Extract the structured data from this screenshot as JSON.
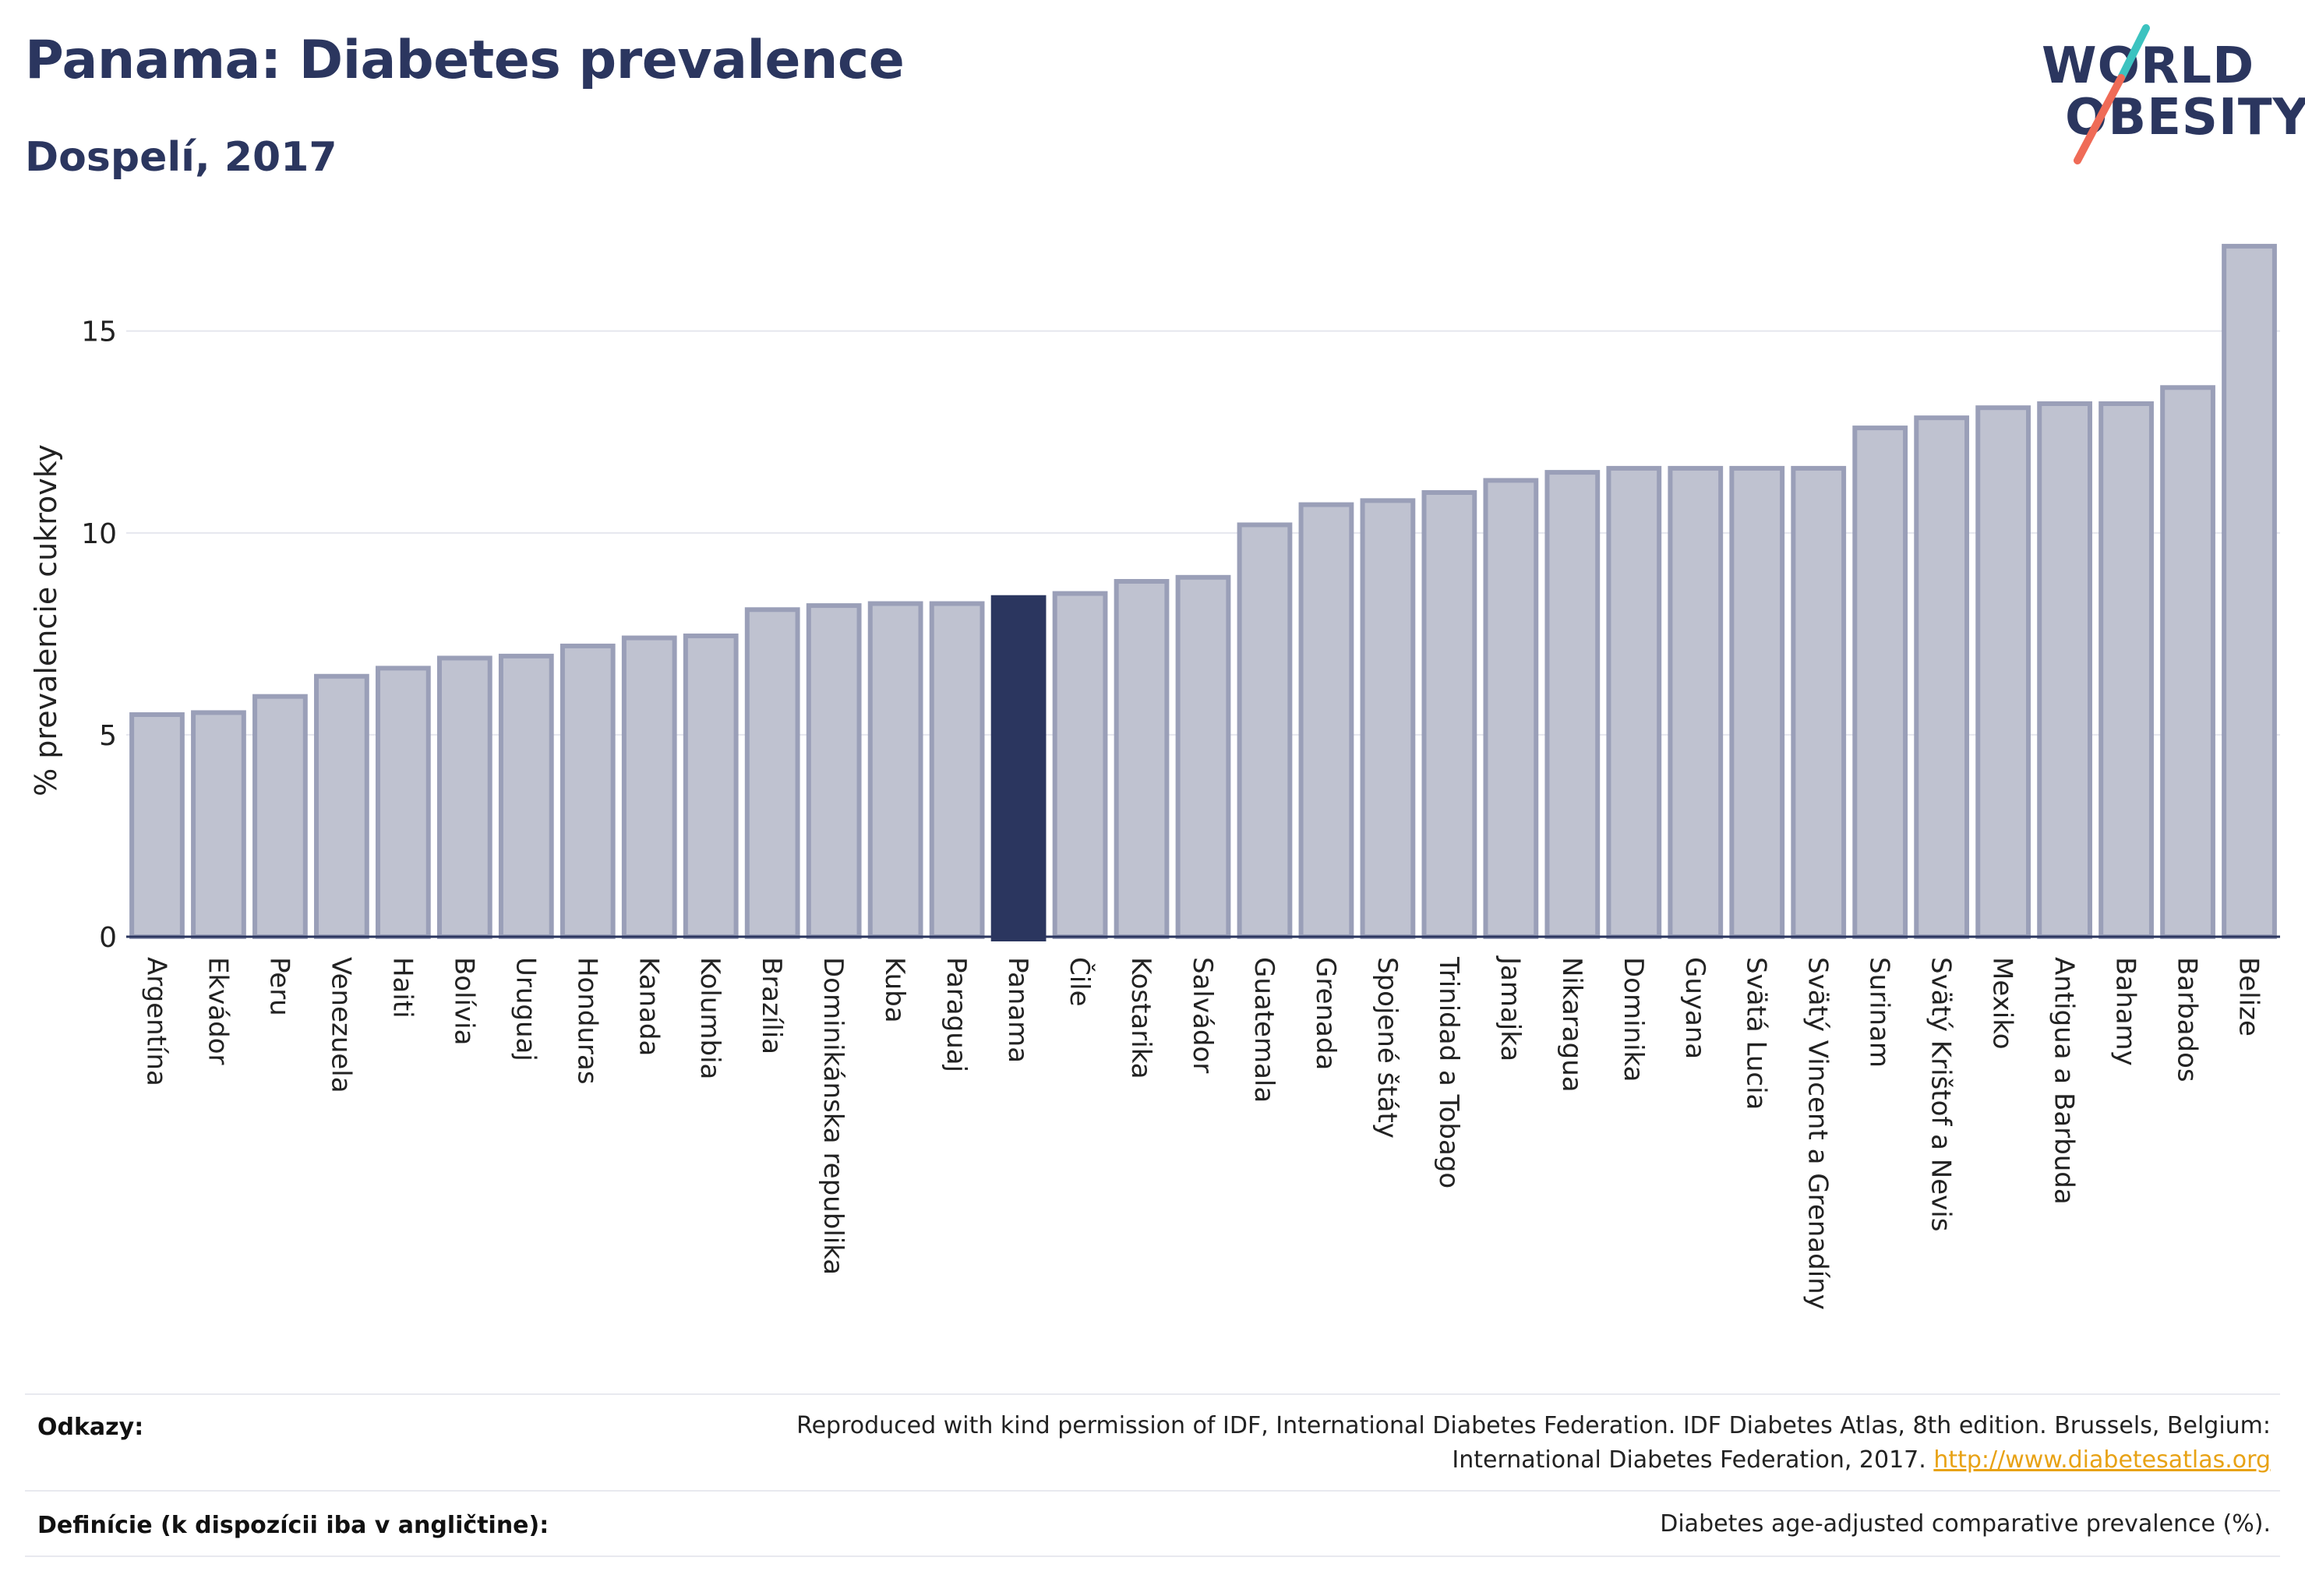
{
  "header": {
    "title": "Panama: Diabetes prevalence",
    "subtitle": "Dospelí, 2017"
  },
  "logo": {
    "line1": "WORLD",
    "line2": "OBESITY",
    "colors": {
      "text": "#2b365f",
      "slash_top": "#3cc3c0",
      "slash_bottom": "#ef6b57"
    }
  },
  "chart_data": {
    "type": "bar",
    "ylabel": "% prevalencie cukrovky",
    "ylim": [
      0,
      17.6
    ],
    "yticks": [
      0,
      5,
      10,
      15
    ],
    "grid": true,
    "highlight": "Panama",
    "colors": {
      "bar_fill": "#bfc2d0",
      "bar_stroke": "#9a9fb8",
      "highlight_fill": "#2b365f",
      "grid": "#e6e7ee",
      "axis": "#2b365f"
    },
    "categories": [
      "Argentína",
      "Ekvádor",
      "Peru",
      "Venezuela",
      "Haiti",
      "Bolívia",
      "Uruguaj",
      "Honduras",
      "Kanada",
      "Kolumbia",
      "Brazília",
      "Dominikánska republika",
      "Kuba",
      "Paraguaj",
      "Panama",
      "Čile",
      "Kostarika",
      "Salvádor",
      "Guatemala",
      "Grenada",
      "Spojené štáty",
      "Trinidad a Tobago",
      "Jamajka",
      "Nikaragua",
      "Dominika",
      "Guyana",
      "Svätá Lucia",
      "Svätý Vincent a Grenadíny",
      "Surinam",
      "Svätý Krištof a Nevis",
      "Mexiko",
      "Antigua a Barbuda",
      "Bahamy",
      "Barbados",
      "Belize"
    ],
    "values": [
      5.5,
      5.55,
      5.95,
      6.45,
      6.65,
      6.9,
      6.95,
      7.2,
      7.4,
      7.45,
      8.1,
      8.2,
      8.25,
      8.25,
      8.4,
      8.5,
      8.8,
      8.9,
      10.2,
      10.7,
      10.8,
      11.0,
      11.3,
      11.5,
      11.6,
      11.6,
      11.6,
      11.6,
      12.6,
      12.85,
      13.1,
      13.2,
      13.2,
      13.6,
      17.1
    ]
  },
  "footer": {
    "references_label": "Odkazy:",
    "references_line1": "Reproduced with kind permission of IDF, International Diabetes Federation. IDF Diabetes Atlas, 8th edition. Brussels, Belgium:",
    "references_line2": "International Diabetes Federation, 2017.",
    "references_link": "http://www.diabetesatlas.org",
    "definitions_label": "Definície (k dispozícii iba v angličtine):",
    "definitions_text": "Diabetes age-adjusted comparative prevalence (%)."
  }
}
